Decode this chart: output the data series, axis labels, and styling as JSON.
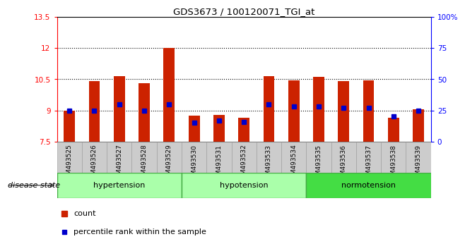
{
  "title": "GDS3673 / 100120071_TGI_at",
  "samples": [
    "GSM493525",
    "GSM493526",
    "GSM493527",
    "GSM493528",
    "GSM493529",
    "GSM493530",
    "GSM493531",
    "GSM493532",
    "GSM493533",
    "GSM493534",
    "GSM493535",
    "GSM493536",
    "GSM493537",
    "GSM493538",
    "GSM493539"
  ],
  "counts": [
    9.0,
    10.4,
    10.65,
    10.3,
    12.0,
    8.75,
    8.8,
    8.65,
    10.65,
    10.45,
    10.6,
    10.4,
    10.45,
    8.65,
    9.05
  ],
  "percentile_ranks": [
    25,
    25,
    30,
    25,
    30,
    15,
    17,
    16,
    30,
    28,
    28,
    27,
    27,
    20,
    25
  ],
  "bar_color": "#cc2200",
  "dot_color": "#0000cc",
  "ymin": 7.5,
  "ymax": 13.5,
  "left_yticks": [
    7.5,
    9.0,
    10.5,
    12.0,
    13.5
  ],
  "left_ytick_labels": [
    "7.5",
    "9",
    "10.5",
    "12",
    "13.5"
  ],
  "right_yticks": [
    0,
    25,
    50,
    75,
    100
  ],
  "right_ytick_labels": [
    "0",
    "25",
    "50",
    "75",
    "100%"
  ],
  "dotted_lines": [
    9.0,
    10.5,
    12.0
  ],
  "groups": [
    {
      "label": "hypertension",
      "start": 0,
      "end": 4,
      "bg": "#aaffaa",
      "border": "#44aa44"
    },
    {
      "label": "hypotension",
      "start": 5,
      "end": 9,
      "bg": "#aaffaa",
      "border": "#44aa44"
    },
    {
      "label": "normotension",
      "start": 10,
      "end": 14,
      "bg": "#44dd44",
      "border": "#44aa44"
    }
  ],
  "disease_state_label": "disease state",
  "legend_count_label": "count",
  "legend_pct_label": "percentile rank within the sample",
  "bar_width": 0.45,
  "base_value": 7.5,
  "gray_tick_bg": "#cccccc"
}
